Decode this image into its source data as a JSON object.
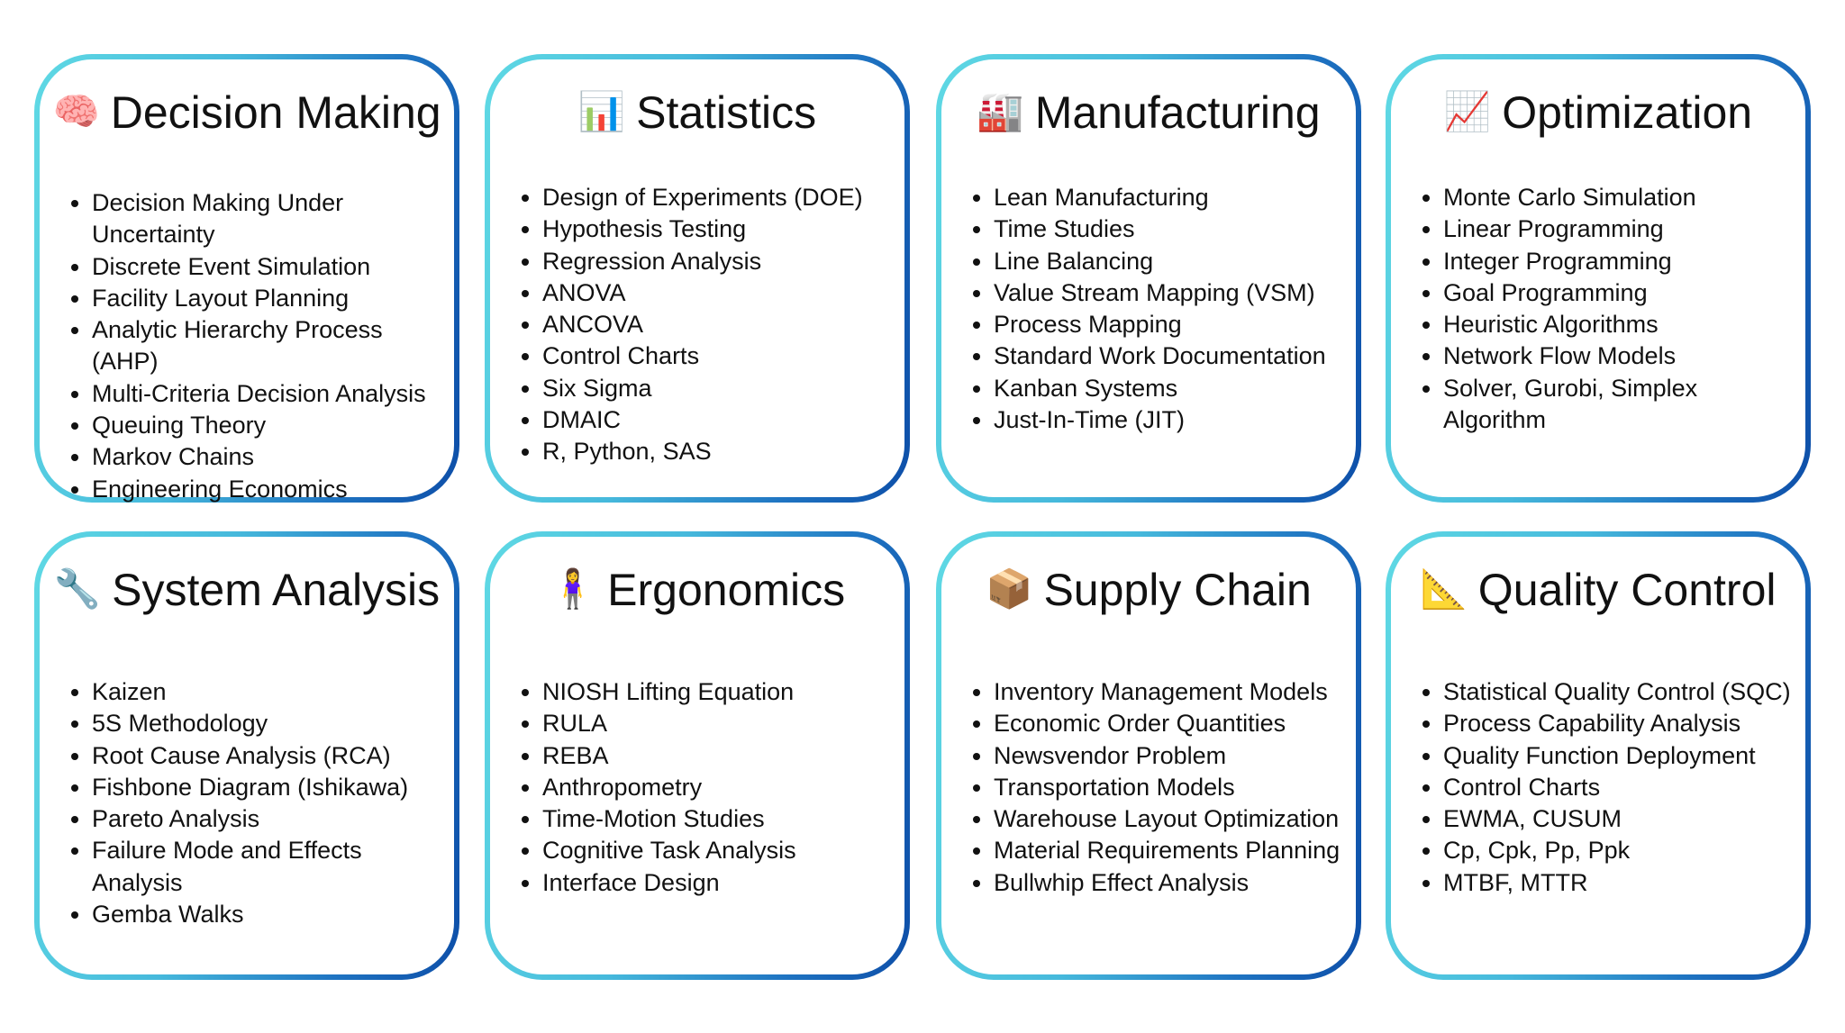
{
  "cards": [
    {
      "icon": "brain-icon",
      "emoji": "🧠",
      "title": "Decision Making",
      "items": [
        "Decision Making Under Uncertainty",
        "Discrete Event Simulation",
        "Facility Layout Planning",
        "Analytic Hierarchy Process (AHP)",
        "Multi-Criteria Decision Analysis",
        "Queuing Theory",
        "Markov Chains",
        "Engineering Economics"
      ]
    },
    {
      "icon": "bar-chart-icon",
      "emoji": "📊",
      "title": "Statistics",
      "items": [
        "Design of Experiments (DOE)",
        "Hypothesis Testing",
        "Regression Analysis",
        "ANOVA",
        "ANCOVA",
        "Control Charts",
        "Six Sigma",
        "DMAIC",
        "R, Python, SAS"
      ]
    },
    {
      "icon": "factory-icon",
      "emoji": "🏭",
      "title": "Manufacturing",
      "items": [
        "Lean Manufacturing",
        "Time Studies",
        "Line Balancing",
        "Value Stream Mapping (VSM)",
        "Process Mapping",
        "Standard Work Documentation",
        "Kanban Systems",
        "Just-In-Time (JIT)"
      ]
    },
    {
      "icon": "chart-increasing-icon",
      "emoji": "📈",
      "title": "Optimization",
      "items": [
        "Monte Carlo Simulation",
        "Linear Programming",
        "Integer Programming",
        "Goal Programming",
        "Heuristic Algorithms",
        "Network Flow Models",
        " Solver, Gurobi, Simplex Algorithm"
      ]
    },
    {
      "icon": "wrench-icon",
      "emoji": "🔧",
      "title": "System Analysis",
      "items": [
        "Kaizen",
        "5S Methodology",
        "Root Cause Analysis (RCA)",
        "Fishbone Diagram (Ishikawa)",
        "Pareto Analysis",
        "Failure Mode and Effects Analysis",
        "Gemba Walks"
      ]
    },
    {
      "icon": "person-standing-icon",
      "emoji": "🧍‍♀️",
      "title": "Ergonomics",
      "items": [
        "NIOSH Lifting Equation",
        "RULA",
        "REBA",
        "Anthropometry",
        "Time-Motion Studies",
        "Cognitive Task Analysis",
        "Interface Design"
      ]
    },
    {
      "icon": "package-icon",
      "emoji": "📦",
      "title": "Supply Chain",
      "items": [
        "Inventory Management Models",
        "Economic Order Quantities",
        "Newsvendor Problem",
        "Transportation Models",
        "Warehouse Layout Optimization",
        "Material Requirements Planning",
        "Bullwhip Effect Analysis"
      ]
    },
    {
      "icon": "triangular-ruler-icon",
      "emoji": "📐",
      "title": "Quality Control",
      "items": [
        "Statistical Quality Control (SQC)",
        "Process Capability Analysis",
        "Quality Function Deployment",
        "Control Charts",
        "EWMA, CUSUM",
        "Cp, Cpk, Pp, Ppk",
        "MTBF, MTTR"
      ]
    }
  ],
  "colors": {
    "border_start": "#5fd9e4",
    "border_end": "#0d4ea8",
    "text": "#111111"
  }
}
